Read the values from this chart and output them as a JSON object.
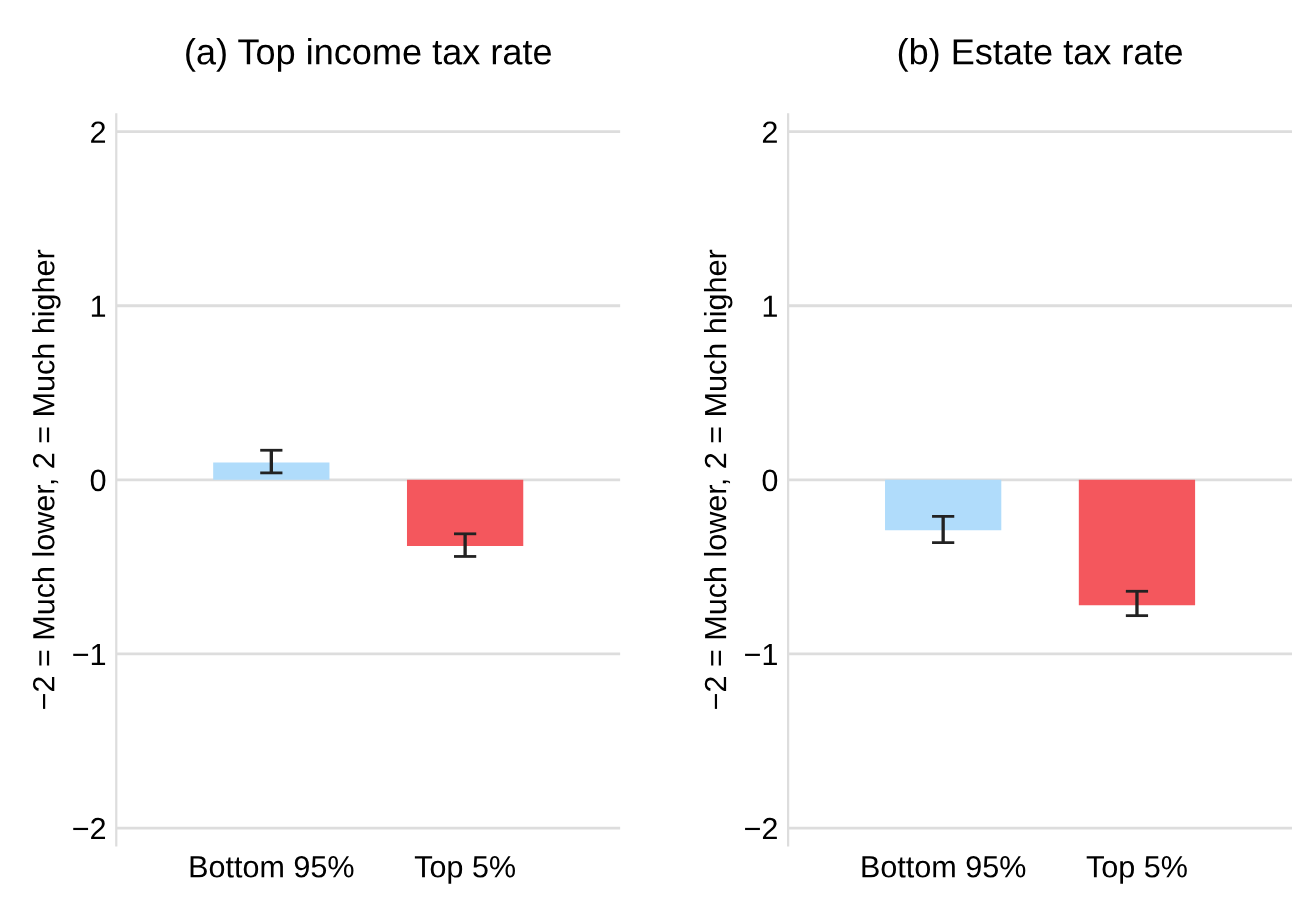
{
  "chart_data": [
    {
      "type": "bar",
      "title": "(a) Top income tax rate",
      "ylabel": "−2 = Much lower, 2 = Much higher",
      "categories": [
        "Bottom 95%",
        "Top 5%"
      ],
      "values": [
        0.1,
        -0.38
      ],
      "colors": [
        "#b0dcfb",
        "#f4575d"
      ],
      "errors": [
        [
          0.04,
          0.17
        ],
        [
          -0.44,
          -0.31
        ]
      ],
      "ylim": [
        -2.1,
        2.1
      ],
      "yticks": [
        -2,
        -1,
        0,
        1,
        2
      ],
      "grid": "y"
    },
    {
      "type": "bar",
      "title": "(b) Estate tax rate",
      "ylabel": "−2 = Much lower, 2 = Much higher",
      "categories": [
        "Bottom 95%",
        "Top 5%"
      ],
      "values": [
        -0.29,
        -0.72
      ],
      "colors": [
        "#b0dcfb",
        "#f4575d"
      ],
      "errors": [
        [
          -0.36,
          -0.21
        ],
        [
          -0.78,
          -0.64
        ]
      ],
      "ylim": [
        -2.1,
        2.1
      ],
      "yticks": [
        -2,
        -1,
        0,
        1,
        2
      ],
      "grid": "y"
    }
  ]
}
